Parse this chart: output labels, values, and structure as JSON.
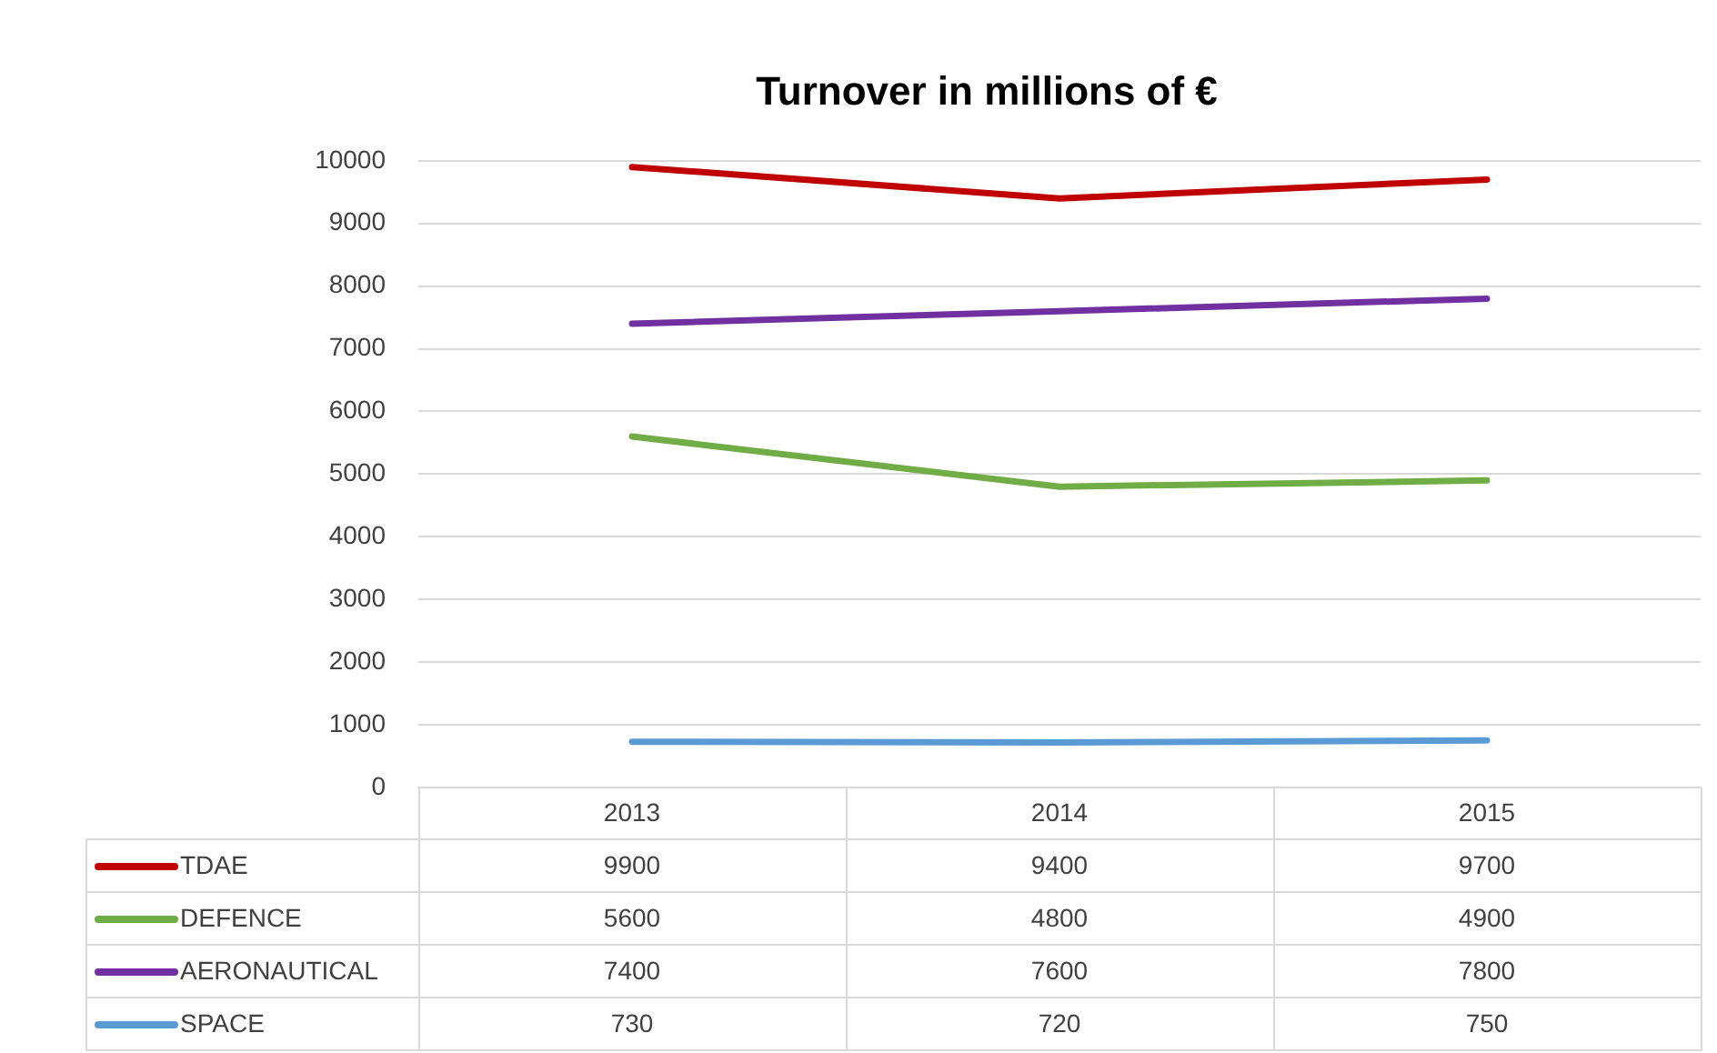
{
  "chart_data": {
    "type": "line",
    "title": "Turnover in millions of €",
    "categories": [
      "2013",
      "2014",
      "2015"
    ],
    "series": [
      {
        "name": "TDAE",
        "color": "#c00000",
        "values": [
          9900,
          9400,
          9700
        ]
      },
      {
        "name": "DEFENCE",
        "color": "#70ad47",
        "values": [
          5600,
          4800,
          4900
        ]
      },
      {
        "name": "AERONAUTICAL",
        "color": "#7030a0",
        "values": [
          7400,
          7600,
          7800
        ]
      },
      {
        "name": "SPACE",
        "color": "#5b9bd5",
        "values": [
          730,
          720,
          750
        ]
      }
    ],
    "ylim": [
      0,
      10000
    ],
    "yticks": [
      0,
      1000,
      2000,
      3000,
      4000,
      5000,
      6000,
      7000,
      8000,
      9000,
      10000
    ],
    "grid": "y",
    "legend": "bottom",
    "marker": "none",
    "line_style": "solid",
    "data_labels": true
  }
}
